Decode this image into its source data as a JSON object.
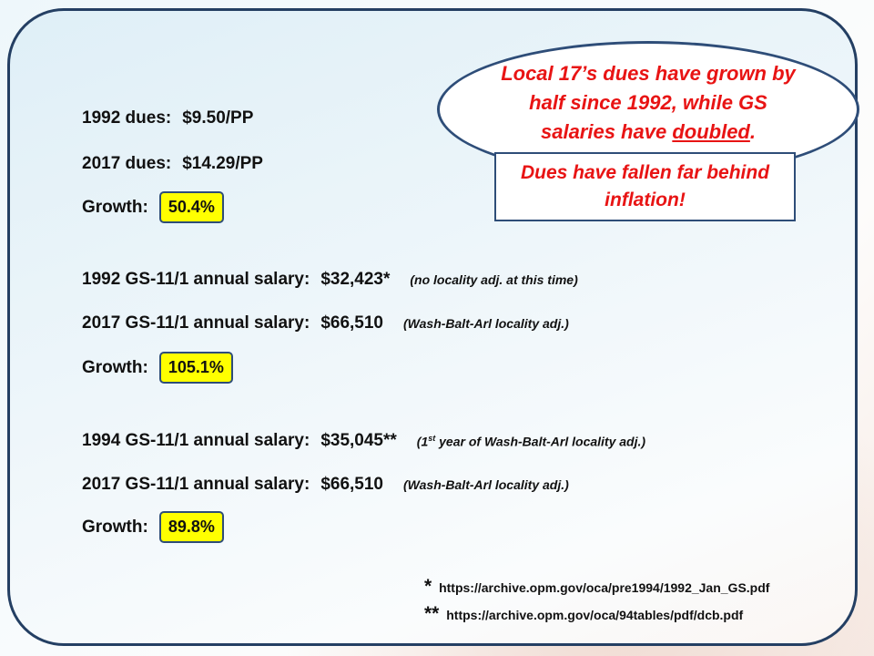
{
  "dues": {
    "y1992_label": "1992 dues:",
    "y1992_value": "$9.50/PP",
    "y2017_label": "2017 dues:",
    "y2017_value": "$14.29/PP",
    "growth_label": "Growth:",
    "growth_value": "50.4%"
  },
  "salary_1992": {
    "a_label": "1992 GS-11/1 annual salary:",
    "a_value": "$32,423*",
    "a_note": "(no locality adj. at this time)",
    "b_label": "2017 GS-11/1 annual salary:",
    "b_value": "$66,510",
    "b_note": "(Wash-Balt-Arl locality adj.)",
    "growth_label": "Growth:",
    "growth_value": "105.1%"
  },
  "salary_1994": {
    "a_label": "1994 GS-11/1 annual salary:",
    "a_value": "$35,045**",
    "a_note_pre": "(1",
    "a_note_sup": "st",
    "a_note_post": " year of Wash-Balt-Arl locality adj.)",
    "b_label": "2017 GS-11/1 annual salary:",
    "b_value": "$66,510",
    "b_note": "(Wash-Balt-Arl locality adj.)",
    "growth_label": "Growth:",
    "growth_value": "89.8%"
  },
  "bubble": {
    "text_pre": "Local 17’s dues have grown by half since 1992, while GS salaries have ",
    "text_emph": "doubled",
    "text_post": "."
  },
  "callout": {
    "text": "Dues have fallen far behind inflation!"
  },
  "sources": {
    "s1_mark": "*",
    "s1_url": "https://archive.opm.gov/oca/pre1994/1992_Jan_GS.pdf",
    "s2_mark": "**",
    "s2_url": "https://archive.opm.gov/oca/94tables/pdf/dcb.pdf"
  },
  "colors": {
    "frame_border": "#243f63",
    "emphasis_red": "#e81414",
    "highlight_yellow": "#ffff00"
  }
}
